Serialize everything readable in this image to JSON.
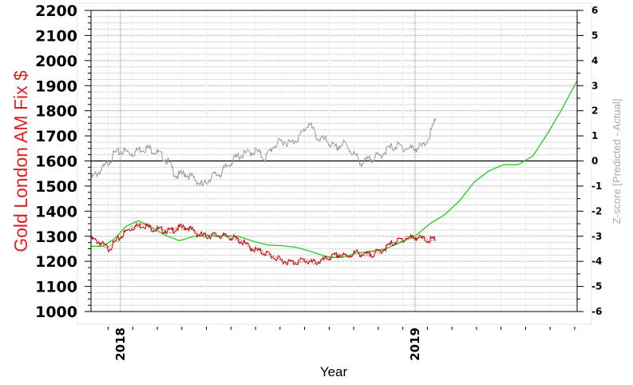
{
  "chart_data": {
    "type": "line",
    "title": "",
    "xlabel": "Year",
    "ylabel_left": "Gold London AM Fix $",
    "ylabel_right": "Z-score [Predicted - Actual]",
    "x_range": [
      2017.9,
      2019.55
    ],
    "ylim_left": [
      1000,
      2200
    ],
    "ylim_right": [
      -6,
      6
    ],
    "left_ticks": [
      "2200",
      "2100",
      "2000",
      "1900",
      "1800",
      "1700",
      "1600",
      "1500",
      "1400",
      "1300",
      "1200",
      "1100",
      "1000"
    ],
    "right_ticks": [
      "6",
      "5",
      "4",
      "3",
      "2",
      "1",
      "0",
      "-1",
      "-2",
      "-3",
      "-4",
      "-5",
      "-6"
    ],
    "x_ticks": [
      "2018",
      "2019"
    ],
    "grid": true,
    "zero_line_right": 0,
    "colors": {
      "gold_price": "#cc0000",
      "gold_price_mid": "#7a1a00",
      "predicted": "#22cc22",
      "zscore": "#999999",
      "zero_line": "#000000",
      "left_label": "#e02020",
      "right_label": "#aaaaaa"
    },
    "series": [
      {
        "axis": "left",
        "x": [
          2017.9,
          2017.93,
          2017.96,
          2017.99,
          2018.02,
          2018.05,
          2018.08,
          2018.11,
          2018.14,
          2018.17,
          2018.2,
          2018.23,
          2018.26,
          2018.29,
          2018.32,
          2018.35,
          2018.38,
          2018.41,
          2018.44,
          2018.47,
          2018.5,
          2018.53,
          2018.56,
          2018.59,
          2018.62,
          2018.65,
          2018.68,
          2018.71,
          2018.74,
          2018.77,
          2018.8,
          2018.83,
          2018.86,
          2018.89,
          2018.92,
          2018.95,
          2018.98,
          2019.01,
          2019.04,
          2019.07
        ],
        "values": [
          1290,
          1275,
          1250,
          1285,
          1320,
          1340,
          1345,
          1330,
          1325,
          1320,
          1335,
          1335,
          1310,
          1300,
          1305,
          1300,
          1295,
          1280,
          1255,
          1240,
          1230,
          1210,
          1200,
          1195,
          1205,
          1195,
          1200,
          1215,
          1225,
          1220,
          1235,
          1225,
          1230,
          1245,
          1270,
          1285,
          1295,
          1295,
          1285,
          1285
        ]
      },
      {
        "axis": "left",
        "x": [
          2017.9,
          2017.94,
          2017.98,
          2018.02,
          2018.06,
          2018.1,
          2018.15,
          2018.2,
          2018.25,
          2018.3,
          2018.35,
          2018.4,
          2018.45,
          2018.5,
          2018.55,
          2018.6,
          2018.65,
          2018.7,
          2018.75,
          2018.8,
          2018.85,
          2018.9,
          2018.95,
          2019.0,
          2019.05,
          2019.1,
          2019.15,
          2019.2,
          2019.25,
          2019.3,
          2019.35,
          2019.4,
          2019.45,
          2019.5,
          2019.55
        ],
        "values": [
          1260,
          1260,
          1290,
          1340,
          1362,
          1340,
          1305,
          1282,
          1300,
          1302,
          1302,
          1300,
          1280,
          1265,
          1262,
          1255,
          1238,
          1218,
          1215,
          1232,
          1240,
          1250,
          1275,
          1300,
          1350,
          1385,
          1440,
          1515,
          1560,
          1585,
          1585,
          1620,
          1710,
          1810,
          1920
        ]
      },
      {
        "axis": "right",
        "x": [
          2017.9,
          2017.93,
          2017.95,
          2017.98,
          2018.01,
          2018.04,
          2018.07,
          2018.1,
          2018.13,
          2018.16,
          2018.19,
          2018.22,
          2018.25,
          2018.28,
          2018.31,
          2018.34,
          2018.37,
          2018.4,
          2018.43,
          2018.46,
          2018.49,
          2018.52,
          2018.55,
          2018.58,
          2018.61,
          2018.64,
          2018.67,
          2018.7,
          2018.73,
          2018.76,
          2018.79,
          2018.82,
          2018.85,
          2018.88,
          2018.91,
          2018.94,
          2018.97,
          2019.0,
          2019.03,
          2019.06,
          2019.07
        ],
        "values": [
          -0.7,
          -0.4,
          -0.2,
          0.3,
          0.4,
          0.3,
          0.5,
          0.5,
          0.3,
          0.0,
          -0.6,
          -0.5,
          -0.7,
          -1.0,
          -0.6,
          -0.5,
          -0.1,
          0.2,
          0.3,
          0.4,
          0.1,
          0.6,
          0.8,
          0.7,
          1.0,
          1.5,
          0.9,
          0.8,
          0.5,
          0.7,
          0.3,
          -0.1,
          0.1,
          0.2,
          0.5,
          0.6,
          0.5,
          0.5,
          0.6,
          1.3,
          1.7
        ]
      }
    ]
  }
}
